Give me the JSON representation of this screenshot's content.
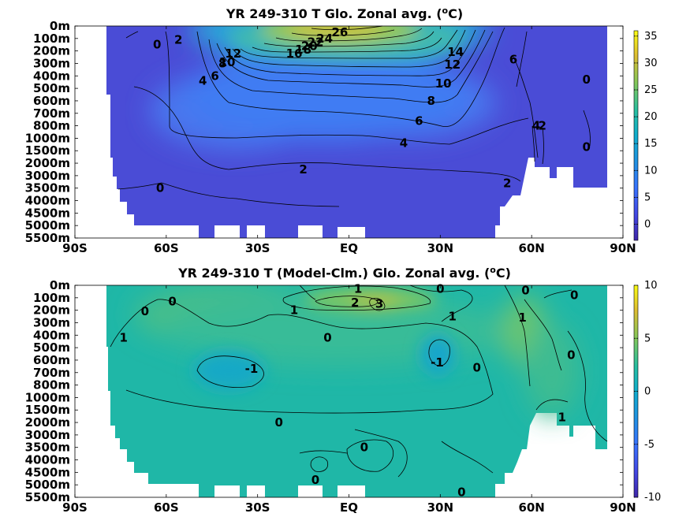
{
  "chart_data": [
    {
      "type": "heatmap",
      "title": "YR 249-310 T Glo. Zonal avg. (",
      "title_sup": "o",
      "title_end": "C)",
      "x_ticks": [
        "90S",
        "60S",
        "30S",
        "EQ",
        "30N",
        "60N",
        "90N"
      ],
      "x_values": [
        -90,
        -60,
        -30,
        0,
        30,
        60,
        90
      ],
      "y_ticks": [
        "0m",
        "100m",
        "200m",
        "300m",
        "400m",
        "500m",
        "600m",
        "700m",
        "800m",
        "1000m",
        "1500m",
        "2000m",
        "3000m",
        "3500m",
        "4000m",
        "4500m",
        "5000m",
        "5500m"
      ],
      "colorbar": {
        "ticks": [
          "35",
          "30",
          "25",
          "20",
          "15",
          "10",
          "5",
          "0"
        ],
        "values": [
          35,
          30,
          25,
          20,
          15,
          10,
          5,
          0
        ],
        "range": [
          -3,
          36
        ]
      },
      "contour_labels": [
        {
          "text": "26",
          "lat": -3,
          "depth": 0.5
        },
        {
          "text": "24",
          "lat": -8,
          "depth": 1
        },
        {
          "text": "22",
          "lat": -11,
          "depth": 1.3
        },
        {
          "text": "20",
          "lat": -13,
          "depth": 1.6
        },
        {
          "text": "18",
          "lat": -15,
          "depth": 1.9
        },
        {
          "text": "16",
          "lat": -18,
          "depth": 2.2
        },
        {
          "text": "14",
          "lat": 35,
          "depth": 2.1
        },
        {
          "text": "12",
          "lat": 34,
          "depth": 3.1
        },
        {
          "text": "12",
          "lat": -38,
          "depth": 2.2
        },
        {
          "text": "10",
          "lat": -40,
          "depth": 2.9
        },
        {
          "text": "8",
          "lat": -41.5,
          "depth": 3.0
        },
        {
          "text": "10",
          "lat": 31,
          "depth": 4.6
        },
        {
          "text": "8",
          "lat": 27,
          "depth": 6.0
        },
        {
          "text": "6",
          "lat": 23,
          "depth": 7.6
        },
        {
          "text": "4",
          "lat": 18,
          "depth": 9.4
        },
        {
          "text": "6",
          "lat": -44,
          "depth": 4.0
        },
        {
          "text": "4",
          "lat": -48,
          "depth": 4.4
        },
        {
          "text": "2",
          "lat": -56,
          "depth": 1.1
        },
        {
          "text": "0",
          "lat": -63,
          "depth": 1.5
        },
        {
          "text": "6",
          "lat": 54,
          "depth": 2.7
        },
        {
          "text": "0",
          "lat": 78,
          "depth": 4.3
        },
        {
          "text": "4",
          "lat": 61.5,
          "depth": 8.0
        },
        {
          "text": "2",
          "lat": 63.5,
          "depth": 8.0
        },
        {
          "text": "0",
          "lat": 78,
          "depth": 9.7
        },
        {
          "text": "2",
          "lat": -15,
          "depth": 11.5
        },
        {
          "text": "2",
          "lat": 52,
          "depth": 12.6
        },
        {
          "text": "0",
          "lat": -62,
          "depth": 13.0
        }
      ]
    },
    {
      "type": "heatmap",
      "title": "YR 249-310 T (Model-Clm.) Glo. Zonal avg. (",
      "title_sup": "o",
      "title_end": "C)",
      "x_ticks": [
        "90S",
        "60S",
        "30S",
        "EQ",
        "30N",
        "60N",
        "90N"
      ],
      "x_values": [
        -90,
        -60,
        -30,
        0,
        30,
        60,
        90
      ],
      "y_ticks": [
        "0m",
        "100m",
        "200m",
        "300m",
        "400m",
        "500m",
        "600m",
        "700m",
        "800m",
        "1000m",
        "1500m",
        "2000m",
        "3000m",
        "3500m",
        "4000m",
        "4500m",
        "5000m",
        "5500m"
      ],
      "colorbar": {
        "ticks": [
          "10",
          "5",
          "0",
          "-5",
          "-10"
        ],
        "values": [
          10,
          5,
          0,
          -5,
          -10
        ],
        "range": [
          -10,
          10
        ]
      },
      "contour_labels": [
        {
          "text": "1",
          "lat": 3,
          "depth": 0.3
        },
        {
          "text": "2",
          "lat": 2,
          "depth": 1.4
        },
        {
          "text": "3",
          "lat": 10,
          "depth": 1.5
        },
        {
          "text": "0",
          "lat": 30,
          "depth": 0.3
        },
        {
          "text": "0",
          "lat": 58,
          "depth": 0.4
        },
        {
          "text": "0",
          "lat": 74,
          "depth": 0.8
        },
        {
          "text": "1",
          "lat": -18,
          "depth": 2.0
        },
        {
          "text": "1",
          "lat": 34,
          "depth": 2.5
        },
        {
          "text": "1",
          "lat": 57,
          "depth": 2.6
        },
        {
          "text": "0",
          "lat": -58,
          "depth": 1.3
        },
        {
          "text": "0",
          "lat": -67,
          "depth": 2.1
        },
        {
          "text": "1",
          "lat": -74,
          "depth": 4.2
        },
        {
          "text": "0",
          "lat": -7,
          "depth": 4.2
        },
        {
          "text": "-1",
          "lat": -32,
          "depth": 6.7
        },
        {
          "text": "-1",
          "lat": 29,
          "depth": 6.2
        },
        {
          "text": "0",
          "lat": 42,
          "depth": 6.6
        },
        {
          "text": "0",
          "lat": 73,
          "depth": 5.6
        },
        {
          "text": "1",
          "lat": 70,
          "depth": 10.6
        },
        {
          "text": "0",
          "lat": -23,
          "depth": 11.0
        },
        {
          "text": "0",
          "lat": 5,
          "depth": 13.0
        },
        {
          "text": "0",
          "lat": -11,
          "depth": 15.6
        },
        {
          "text": "0",
          "lat": 37,
          "depth": 16.6
        }
      ]
    }
  ]
}
